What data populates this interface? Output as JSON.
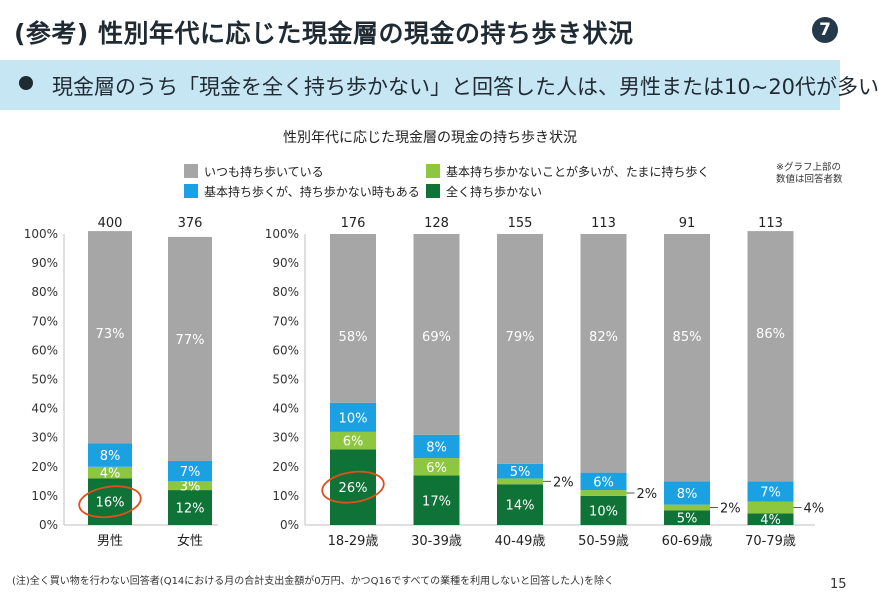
{
  "title": "(参考) 性別年代に応じた現金層の現金の持ち歩き状況",
  "badge": "7",
  "banner": "現金層のうち「現金を全く持ち歩かない」と回答した人は、男性または10~20代が多い",
  "chart_title": "性別年代に応じた現金層の現金の持ち歩き状況",
  "legend": [
    {
      "label": "いつも持ち歩いている",
      "color": "#a6a6a6"
    },
    {
      "label": "基本持ち歩かないことが多いが、たまに持ち歩く",
      "color": "#8dc63f"
    },
    {
      "label": "基本持ち歩くが、持ち歩かない時もある",
      "color": "#1ba1e2"
    },
    {
      "label": "全く持ち歩かない",
      "color": "#0f7237"
    }
  ],
  "note_top": [
    "※グラフ上部の",
    "数値は回答者数"
  ],
  "footnote": "(注)全く買い物を行わない回答者(Q14における月の合計支出金額が0万円、かつQ16ですべての業種を利用しないと回答した人)を除く",
  "page_number": "15",
  "chart_data": [
    {
      "type": "bar",
      "stacked": true,
      "categories": [
        "男性",
        "女性"
      ],
      "respondents": [
        400,
        376
      ],
      "series": [
        {
          "name": "全く持ち歩かない",
          "values": [
            16,
            12
          ],
          "color": "#0f7237"
        },
        {
          "name": "基本持ち歩かないことが多いが、たまに持ち歩く",
          "values": [
            4,
            3
          ],
          "color": "#8dc63f"
        },
        {
          "name": "基本持ち歩くが、持ち歩かない時もある",
          "values": [
            8,
            7
          ],
          "color": "#1ba1e2"
        },
        {
          "name": "いつも持ち歩いている",
          "values": [
            73,
            77
          ],
          "color": "#a6a6a6"
        }
      ],
      "y_ticks": [
        "0%",
        "10%",
        "20%",
        "30%",
        "40%",
        "50%",
        "60%",
        "70%",
        "80%",
        "90%",
        "100%"
      ],
      "ylim": [
        0,
        100
      ],
      "circled": [
        {
          "category": 0,
          "series": 0
        }
      ]
    },
    {
      "type": "bar",
      "stacked": true,
      "categories": [
        "18-29歳",
        "30-39歳",
        "40-49歳",
        "50-59歳",
        "60-69歳",
        "70-79歳"
      ],
      "respondents": [
        176,
        128,
        155,
        113,
        91,
        113
      ],
      "series": [
        {
          "name": "全く持ち歩かない",
          "values": [
            26,
            17,
            14,
            10,
            5,
            4
          ],
          "color": "#0f7237"
        },
        {
          "name": "基本持ち歩かないことが多いが、たまに持ち歩く",
          "values": [
            6,
            6,
            2,
            2,
            2,
            4
          ],
          "color": "#8dc63f"
        },
        {
          "name": "基本持ち歩くが、持ち歩かない時もある",
          "values": [
            10,
            8,
            5,
            6,
            8,
            7
          ],
          "color": "#1ba1e2"
        },
        {
          "name": "いつも持ち歩いている",
          "values": [
            58,
            69,
            79,
            82,
            85,
            86
          ],
          "color": "#a6a6a6"
        }
      ],
      "y_ticks": [
        "0%",
        "10%",
        "20%",
        "30%",
        "40%",
        "50%",
        "60%",
        "70%",
        "80%",
        "90%",
        "100%"
      ],
      "ylim": [
        0,
        100
      ],
      "circled": [
        {
          "category": 0,
          "series": 0
        }
      ]
    }
  ]
}
